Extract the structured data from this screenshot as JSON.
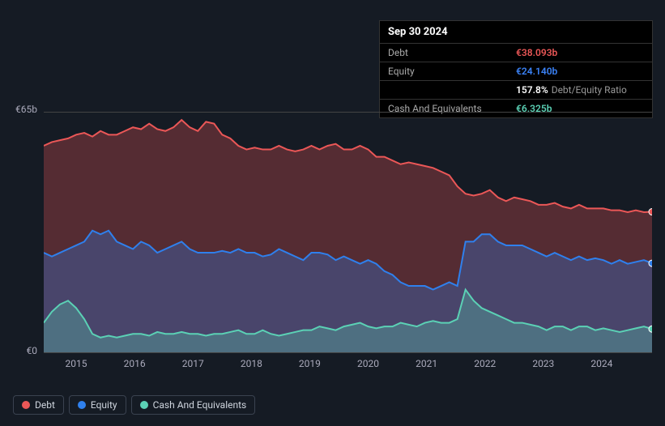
{
  "chart": {
    "type": "area",
    "background_color": "#151b24",
    "grid_border_color": "#444444",
    "text_color": "#aab0bd",
    "ylim": [
      0,
      65
    ],
    "y_ticks": [
      {
        "value": 0,
        "label": "€0"
      },
      {
        "value": 65,
        "label": "€65b"
      }
    ],
    "x_labels": [
      "2015",
      "2016",
      "2017",
      "2018",
      "2019",
      "2020",
      "2021",
      "2022",
      "2023",
      "2024"
    ],
    "series": [
      {
        "id": "debt",
        "label": "Debt",
        "stroke": "#eb5757",
        "fill": "rgba(235,87,87,0.30)",
        "stroke_width": 2,
        "values": [
          56,
          57,
          57.5,
          58,
          59,
          59.5,
          58.5,
          60,
          59,
          59,
          60,
          61,
          60.5,
          62,
          60.5,
          60,
          61,
          63,
          61,
          60,
          62.5,
          62,
          59,
          58,
          56,
          55,
          55.5,
          55,
          55,
          56,
          55,
          54.5,
          55,
          56,
          55,
          56,
          56.5,
          55,
          55,
          56,
          55,
          53,
          53,
          52,
          51,
          51.5,
          51,
          50.5,
          50,
          49,
          48,
          45,
          43,
          42.5,
          43,
          44,
          42,
          41,
          42,
          41.5,
          41,
          40,
          40,
          40.5,
          39.5,
          39,
          40,
          39,
          39,
          39,
          38.5,
          38.5,
          38,
          38.5,
          38,
          38.093
        ]
      },
      {
        "id": "equity",
        "label": "Equity",
        "stroke": "#2f80ed",
        "fill": "rgba(47,128,237,0.30)",
        "stroke_width": 2,
        "values": [
          27,
          26,
          27,
          28,
          29,
          30,
          33,
          32,
          33,
          30,
          29,
          28,
          30,
          29,
          27,
          28,
          29,
          30,
          28,
          27,
          27,
          27,
          27.5,
          27,
          28,
          27,
          27,
          26,
          26.5,
          28,
          27,
          26,
          25,
          27,
          27,
          26.5,
          25,
          26,
          25,
          24,
          25,
          24,
          22,
          21,
          19,
          18,
          18,
          18,
          17,
          18,
          19,
          18,
          30,
          30,
          32,
          32,
          30,
          29,
          29,
          29,
          28,
          27,
          26,
          27,
          26,
          25,
          26,
          25,
          25.5,
          25,
          24,
          25,
          24,
          24.5,
          25,
          24.14
        ]
      },
      {
        "id": "cash",
        "label": "Cash And Equivalents",
        "stroke": "#5bd1b5",
        "fill": "rgba(91,209,181,0.30)",
        "stroke_width": 2,
        "values": [
          8,
          11,
          13,
          14,
          12,
          9,
          5,
          4,
          4.5,
          4,
          4.5,
          5,
          5,
          4.5,
          5.5,
          5,
          5,
          5.5,
          5,
          5,
          4.5,
          5,
          5,
          5.5,
          6,
          5,
          5,
          6,
          5,
          4.5,
          5,
          5.5,
          6,
          6,
          7,
          6.5,
          6,
          7,
          7.5,
          8,
          7,
          6.5,
          7,
          7,
          8,
          7.5,
          7,
          8,
          8.5,
          8,
          8,
          9,
          17,
          14,
          12,
          11,
          10,
          9,
          8,
          8,
          7.5,
          7,
          6,
          7,
          7,
          6,
          7,
          7,
          6,
          6.5,
          6,
          5.5,
          6,
          6.5,
          7,
          6.325
        ]
      }
    ],
    "end_markers": true
  },
  "tooltip": {
    "title": "Sep 30 2024",
    "rows": [
      {
        "label": "Debt",
        "value": "€38.093b",
        "color": "#eb5757"
      },
      {
        "label": "Equity",
        "value": "€24.140b",
        "color": "#3b82f6"
      },
      {
        "label": "",
        "value": "157.8%",
        "extra": "Debt/Equity Ratio",
        "color": "#ffffff"
      },
      {
        "label": "Cash And Equivalents",
        "value": "€6.325b",
        "color": "#5bd1b5"
      }
    ]
  },
  "legend": [
    {
      "id": "debt",
      "label": "Debt",
      "color": "#eb5757"
    },
    {
      "id": "equity",
      "label": "Equity",
      "color": "#2f80ed"
    },
    {
      "id": "cash",
      "label": "Cash And Equivalents",
      "color": "#5bd1b5"
    }
  ]
}
